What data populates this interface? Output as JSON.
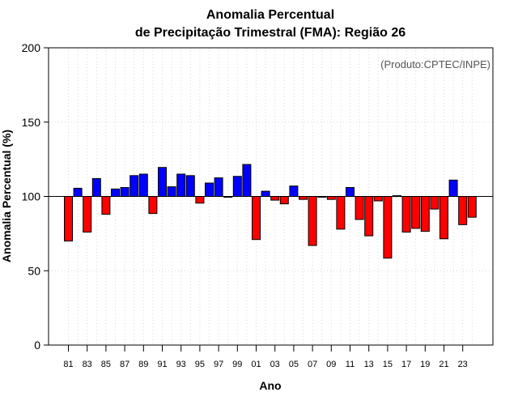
{
  "chart_data": {
    "type": "bar",
    "title_line1": "Anomalia Percentual",
    "title_line2": "de Precipitação Trimestral (FMA): Região 26",
    "subtitle": "(Produto:CPTEC/INPE)",
    "xlabel": "Ano",
    "ylabel": "Anomalia Percentual (%)",
    "ylim": [
      0,
      200
    ],
    "yticks": [
      0,
      50,
      100,
      150,
      200
    ],
    "baseline": 100,
    "grid": true,
    "colors": {
      "above": "#0000ff",
      "below": "#ff0000",
      "outline": "#000000",
      "grid": "#d9d9d9"
    },
    "categories": [
      "81",
      "82",
      "83",
      "84",
      "85",
      "86",
      "87",
      "88",
      "89",
      "90",
      "91",
      "92",
      "93",
      "94",
      "95",
      "96",
      "97",
      "98",
      "99",
      "00",
      "01",
      "02",
      "03",
      "04",
      "05",
      "06",
      "07",
      "08",
      "09",
      "10",
      "11",
      "12",
      "13",
      "14",
      "15",
      "16",
      "17",
      "18",
      "19",
      "20",
      "21",
      "22",
      "23",
      "24"
    ],
    "xtick_labels": [
      "81",
      "83",
      "85",
      "87",
      "89",
      "91",
      "93",
      "95",
      "97",
      "99",
      "01",
      "03",
      "05",
      "07",
      "09",
      "11",
      "13",
      "15",
      "17",
      "19",
      "21",
      "23"
    ],
    "values": [
      70,
      105.5,
      76,
      112,
      88,
      105,
      106,
      114,
      115,
      88.5,
      119.5,
      106.5,
      115,
      114,
      95.5,
      109,
      112.5,
      99.5,
      113.5,
      121.5,
      71,
      103.5,
      97.5,
      95,
      107,
      98,
      67,
      99.5,
      98,
      78,
      106,
      84.5,
      73.5,
      97,
      58.5,
      100.5,
      76,
      78.5,
      76.5,
      91.5,
      71.5,
      111,
      81,
      86
    ]
  }
}
